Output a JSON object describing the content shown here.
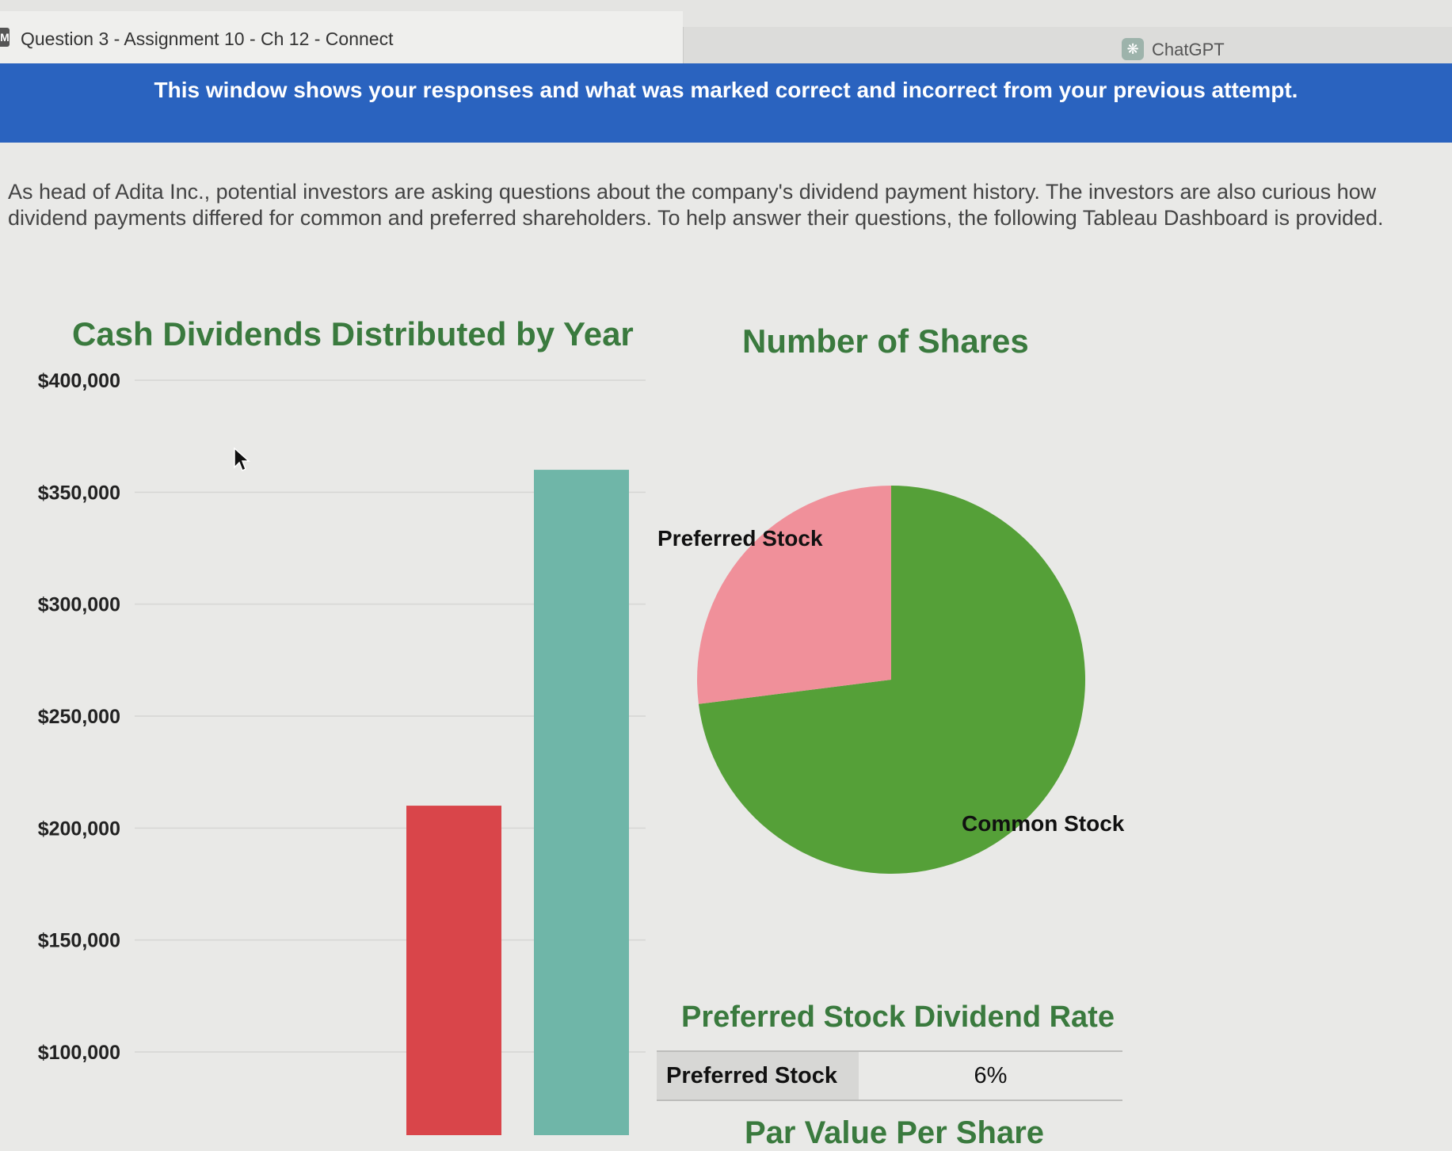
{
  "browser": {
    "active_tab_title": "Question 3 - Assignment 10 - Ch 12 - Connect",
    "active_tab_icon": "M",
    "second_tab_title": "ChatGPT"
  },
  "banner": {
    "text": "This window shows your responses and what was marked correct and incorrect from your previous attempt."
  },
  "question": {
    "intro": "As head of Adita Inc., potential investors are asking questions about the company's dividend payment history. The investors are also curious how dividend payments differed for common and preferred shareholders. To help answer their questions, the following Tableau Dashboard is provided."
  },
  "dashboard": {
    "bar_title": "Cash Dividends Distributed by Year",
    "pie_title": "Number of Shares",
    "rate_title": "Preferred Stock Dividend Rate",
    "rate_label": "Preferred Stock",
    "rate_value": "6%",
    "next_title_partial": "Par Value Per Share"
  },
  "chart_data": [
    {
      "type": "bar",
      "title": "Cash Dividends Distributed by Year",
      "ylim": [
        0,
        400000
      ],
      "yticks": [
        "$400,000",
        "$350,000",
        "$300,000",
        "$250,000",
        "$200,000",
        "$150,000",
        "$100,000"
      ],
      "ytick_values": [
        400000,
        350000,
        300000,
        250000,
        200000,
        150000,
        100000
      ],
      "grid": true,
      "values": [
        210000,
        360000
      ],
      "colors": [
        "#d9454a",
        "#6fb6a8"
      ]
    },
    {
      "type": "pie",
      "title": "Number of Shares",
      "labels": [
        "Common Stock",
        "Preferred Stock"
      ],
      "values": [
        73,
        27
      ],
      "colors": [
        "#55a038",
        "#f0909a"
      ]
    }
  ]
}
